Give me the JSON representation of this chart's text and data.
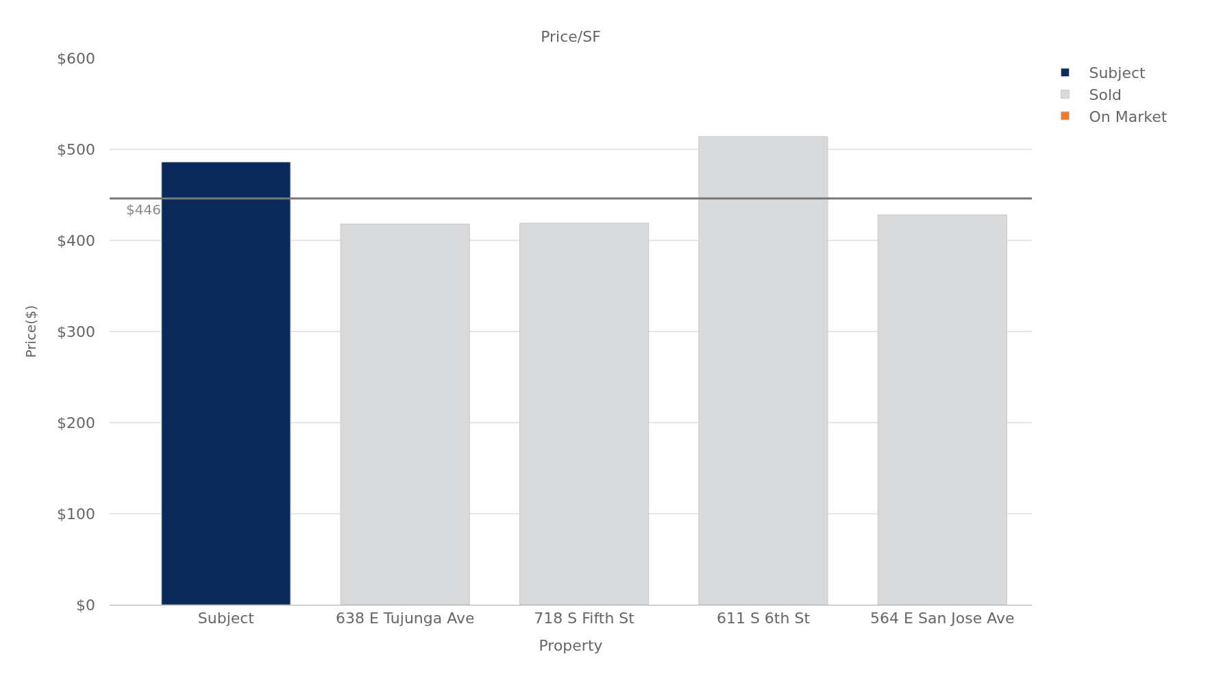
{
  "chart_data": {
    "type": "bar",
    "title": "Price/SF",
    "xlabel": "Property",
    "ylabel": "Price($)",
    "categories": [
      "Subject",
      "638 E Tujunga Ave",
      "718 S Fifth St",
      "611 S 6th St",
      "564 E San Jose Ave"
    ],
    "series": [
      {
        "name": "Subject",
        "color": "#0b2a5b",
        "values": [
          486,
          null,
          null,
          null,
          null
        ]
      },
      {
        "name": "Sold",
        "color": "#d9dadb",
        "values": [
          null,
          418,
          419,
          514,
          428
        ]
      },
      {
        "name": "On Market",
        "color": "#f47b20",
        "values": [
          null,
          null,
          null,
          null,
          null
        ]
      }
    ],
    "ylim": [
      0,
      600
    ],
    "yticks": [
      {
        "value": 0,
        "label": "$0"
      },
      {
        "value": 100,
        "label": "$100"
      },
      {
        "value": 200,
        "label": "$200"
      },
      {
        "value": 300,
        "label": "$300"
      },
      {
        "value": 400,
        "label": "$400"
      },
      {
        "value": 500,
        "label": "$500"
      },
      {
        "value": 600,
        "label": "$600"
      }
    ],
    "ref_lines": [
      {
        "axis": "y",
        "value": 446,
        "label": "$446",
        "color": "#777777"
      }
    ],
    "grid": "y",
    "legend": "top right"
  }
}
